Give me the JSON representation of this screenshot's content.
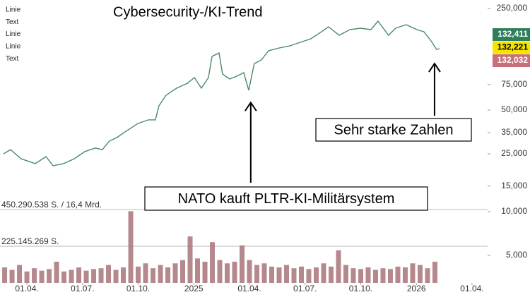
{
  "chart_data": {
    "type": "line",
    "title": "Cybersecurity-/KI-Trend",
    "left_labels": [
      "Linie",
      "Text",
      "Linie",
      "Linie",
      "Text"
    ],
    "x": [
      1.74,
      2.12,
      2.69,
      3.45,
      4.03,
      4.41,
      4.98,
      5.55,
      6.12,
      6.69,
      7.07,
      7.45,
      7.84,
      8.41,
      8.98,
      9.55,
      9.93,
      10.12,
      10.5,
      11.07,
      11.65,
      12.03,
      12.41,
      12.79,
      12.98,
      13.36,
      13.55,
      13.93,
      14.31,
      14.69,
      14.96,
      15.26,
      15.64,
      16.03,
      16.6,
      17.17,
      17.74,
      18.31,
      18.88,
      19.26,
      19.84,
      20.41,
      20.98,
      21.55,
      21.93,
      22.5,
      22.88,
      23.45,
      24.03,
      24.41,
      24.79,
      25.09,
      25.25
    ],
    "values": [
      25000,
      26700,
      23100,
      21400,
      23900,
      20700,
      21400,
      23100,
      25900,
      27400,
      26700,
      30600,
      32300,
      36200,
      40400,
      42800,
      42800,
      53500,
      63200,
      70700,
      76400,
      83600,
      70700,
      83600,
      116900,
      123600,
      88400,
      81800,
      85500,
      90400,
      68400,
      104500,
      110600,
      127900,
      133700,
      138200,
      146200,
      154600,
      172800,
      187000,
      163500,
      178800,
      182800,
      178800,
      204500,
      163500,
      182800,
      193300,
      178800,
      172800,
      149500,
      130700,
      132221
    ],
    "color": "#4a8a66",
    "log_scale": true,
    "ylim": [
      3270,
      286000
    ],
    "yticks": [
      {
        "value": 250000,
        "label": "250,000"
      },
      {
        "value": 75000,
        "label": "75,000"
      },
      {
        "value": 50000,
        "label": "50,000"
      },
      {
        "value": 35000,
        "label": "35,000"
      },
      {
        "value": 25000,
        "label": "25,000"
      },
      {
        "value": 15000,
        "label": "15,000"
      },
      {
        "value": 10000,
        "label": "10,000"
      },
      {
        "value": 5000,
        "label": "5,000"
      }
    ],
    "xlim": [
      1.55,
      27.84
    ],
    "xticks": [
      {
        "value": 3,
        "label": "01.04."
      },
      {
        "value": 6,
        "label": "01.07."
      },
      {
        "value": 9,
        "label": "01.10."
      },
      {
        "value": 12,
        "label": "2025"
      },
      {
        "value": 15,
        "label": "01.04."
      },
      {
        "value": 18,
        "label": "01.07."
      },
      {
        "value": 21,
        "label": "01.10."
      },
      {
        "value": 24,
        "label": "2026"
      },
      {
        "value": 27,
        "label": "01.04."
      }
    ],
    "price_tags": [
      {
        "value": 132411,
        "label": "132,411",
        "color": "#2e7d5b"
      },
      {
        "value": 132221,
        "label": "132,221",
        "color": "#f5e400"
      },
      {
        "value": 132032,
        "label": "132,032",
        "color": "#c8707a"
      }
    ],
    "volume": {
      "x": [
        1.8,
        2.2,
        2.6,
        3.0,
        3.4,
        3.8,
        4.2,
        4.6,
        5.0,
        5.4,
        5.8,
        6.2,
        6.6,
        7.0,
        7.4,
        7.8,
        8.2,
        8.6,
        9.0,
        9.4,
        9.8,
        10.2,
        10.6,
        11.0,
        11.4,
        11.8,
        12.2,
        12.6,
        13.0,
        13.4,
        13.8,
        14.2,
        14.6,
        15.0,
        15.4,
        15.8,
        16.2,
        16.6,
        17.0,
        17.4,
        17.8,
        18.2,
        18.6,
        19.0,
        19.4,
        19.8,
        20.2,
        20.6,
        21.0,
        21.4,
        21.8,
        22.2,
        22.6,
        23.0,
        23.4,
        23.8,
        24.2,
        24.6,
        25.0
      ],
      "values": [
        95000000,
        80000000,
        110000000,
        70000000,
        90000000,
        75000000,
        85000000,
        130000000,
        70000000,
        80000000,
        95000000,
        75000000,
        85000000,
        90000000,
        110000000,
        80000000,
        95000000,
        440000000,
        100000000,
        120000000,
        90000000,
        110000000,
        95000000,
        120000000,
        140000000,
        285000000,
        150000000,
        130000000,
        250000000,
        140000000,
        120000000,
        130000000,
        230000000,
        140000000,
        110000000,
        120000000,
        100000000,
        95000000,
        110000000,
        90000000,
        100000000,
        85000000,
        95000000,
        120000000,
        100000000,
        200000000,
        110000000,
        90000000,
        85000000,
        95000000,
        80000000,
        90000000,
        85000000,
        100000000,
        95000000,
        120000000,
        110000000,
        90000000,
        130000000
      ],
      "color": "#a8737a",
      "ylim": [
        0,
        450290538
      ],
      "yticks": [
        {
          "value": 225145269,
          "label": "225.145.269 S."
        },
        {
          "value": 450290538,
          "label": "450.290.538 S. / 16,4 Mrd."
        }
      ]
    },
    "annotations": [
      {
        "text": "NATO kauft PLTR-KI-Militärsystem",
        "x": 15.07,
        "value": 56400
      },
      {
        "text": "Sehr starke Zahlen",
        "x": 24.98,
        "value": 104500
      }
    ]
  }
}
